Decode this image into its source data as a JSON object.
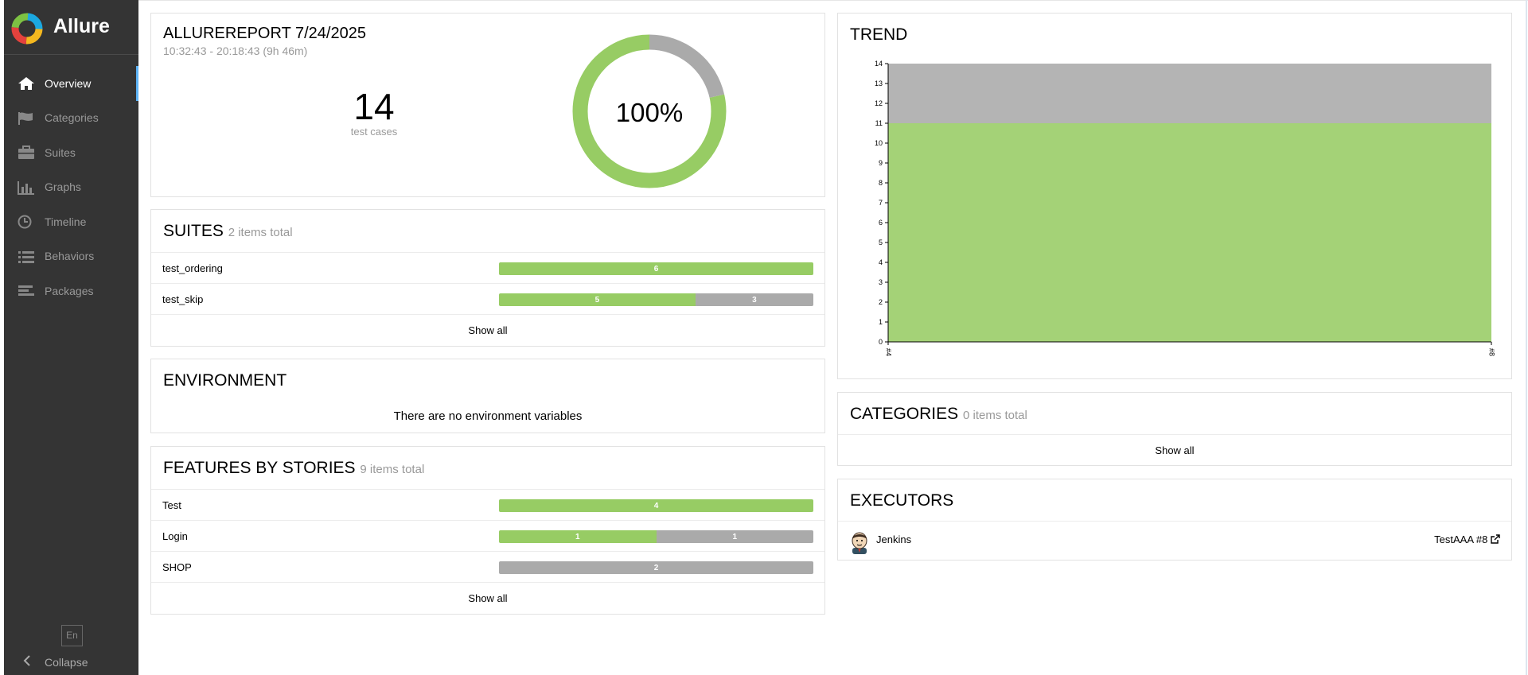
{
  "app": {
    "name": "Allure"
  },
  "sidebar": {
    "items": [
      {
        "label": "Overview",
        "icon": "home-icon",
        "active": true
      },
      {
        "label": "Categories",
        "icon": "flag-icon"
      },
      {
        "label": "Suites",
        "icon": "briefcase-icon"
      },
      {
        "label": "Graphs",
        "icon": "bar-chart-icon"
      },
      {
        "label": "Timeline",
        "icon": "clock-icon"
      },
      {
        "label": "Behaviors",
        "icon": "list-icon"
      },
      {
        "label": "Packages",
        "icon": "align-left-icon"
      }
    ],
    "language": "En",
    "collapse": "Collapse"
  },
  "summary": {
    "title": "ALLUREREPORT 7/24/2025",
    "time": "10:32:43 - 20:18:43 (9h 46m)",
    "count": "14",
    "count_label": "test cases",
    "percent": "100%",
    "donut": {
      "passed": 11,
      "skipped": 3
    }
  },
  "suites": {
    "title": "SUITES",
    "subtitle": "2 items total",
    "rows": [
      {
        "name": "test_ordering",
        "passed": 6,
        "skipped": 0,
        "passed_label": "6",
        "skipped_label": ""
      },
      {
        "name": "test_skip",
        "passed": 5,
        "skipped": 3,
        "passed_label": "5",
        "skipped_label": "3"
      }
    ],
    "show_all": "Show all"
  },
  "environment": {
    "title": "ENVIRONMENT",
    "empty": "There are no environment variables"
  },
  "features": {
    "title": "FEATURES BY STORIES",
    "subtitle": "9 items total",
    "rows": [
      {
        "name": "Test",
        "passed": 4,
        "skipped": 0,
        "passed_label": "4",
        "skipped_label": ""
      },
      {
        "name": "Login",
        "passed": 1,
        "skipped": 1,
        "passed_label": "1",
        "skipped_label": "1"
      },
      {
        "name": "SHOP",
        "passed": 0,
        "skipped": 2,
        "passed_label": "",
        "skipped_label": "2"
      }
    ],
    "show_all": "Show all"
  },
  "trend": {
    "title": "TREND"
  },
  "categories": {
    "title": "CATEGORIES",
    "subtitle": "0 items total",
    "show_all": "Show all"
  },
  "executors": {
    "title": "EXECUTORS",
    "name": "Jenkins",
    "build": "TestAAA #8"
  },
  "colors": {
    "passed": "#97cc64",
    "skipped": "#aaaaaa",
    "sidebar": "#343434",
    "active_indicator": "#5db3f6"
  },
  "chart_data": {
    "type": "area",
    "title": "TREND",
    "x": [
      "#4",
      "#8"
    ],
    "series": [
      {
        "values": [
          11,
          11
        ]
      },
      {
        "values": [
          3,
          3
        ]
      }
    ],
    "ylim": [
      0,
      14
    ],
    "yticks": [
      0,
      1,
      2,
      3,
      4,
      5,
      6,
      7,
      8,
      9,
      10,
      11,
      12,
      13,
      14
    ],
    "stacked": true,
    "colors": [
      "#97cc64",
      "#aaaaaa"
    ]
  }
}
